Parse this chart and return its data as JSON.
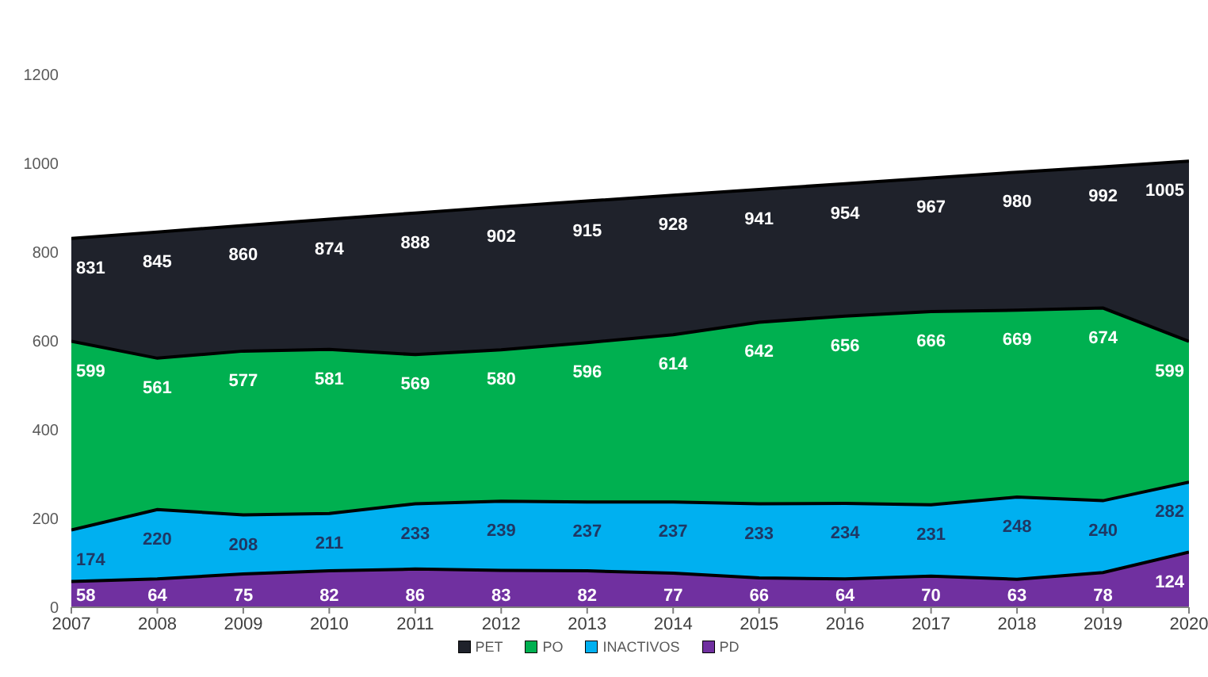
{
  "chart_data": {
    "type": "area",
    "x": [
      2007,
      2008,
      2009,
      2010,
      2011,
      2012,
      2013,
      2014,
      2015,
      2016,
      2017,
      2018,
      2019,
      2020
    ],
    "xlim": [
      2007,
      2020
    ],
    "xticks": [
      2007,
      2008,
      2009,
      2010,
      2011,
      2012,
      2013,
      2014,
      2015,
      2016,
      2017,
      2018,
      2019,
      2020
    ],
    "ylim": [
      0,
      1200
    ],
    "yticks": [
      0,
      200,
      400,
      600,
      800,
      1000,
      1200
    ],
    "grid": false,
    "legend": "bottom",
    "data_labels": true,
    "series": [
      {
        "name": "PET",
        "color": "#1f222b",
        "values": [
          831,
          845,
          860,
          874,
          888,
          902,
          915,
          928,
          941,
          954,
          967,
          980,
          992,
          1005
        ]
      },
      {
        "name": "PO",
        "color": "#00b050",
        "values": [
          599,
          561,
          577,
          581,
          569,
          580,
          596,
          614,
          642,
          656,
          666,
          669,
          674,
          599
        ]
      },
      {
        "name": "INACTIVOS",
        "color": "#00b0f0",
        "values": [
          174,
          220,
          208,
          211,
          233,
          239,
          237,
          237,
          233,
          234,
          231,
          248,
          240,
          282
        ]
      },
      {
        "name": "PD",
        "color": "#7030a0",
        "values": [
          58,
          64,
          75,
          82,
          86,
          83,
          82,
          77,
          66,
          64,
          70,
          63,
          78,
          124
        ]
      }
    ]
  }
}
